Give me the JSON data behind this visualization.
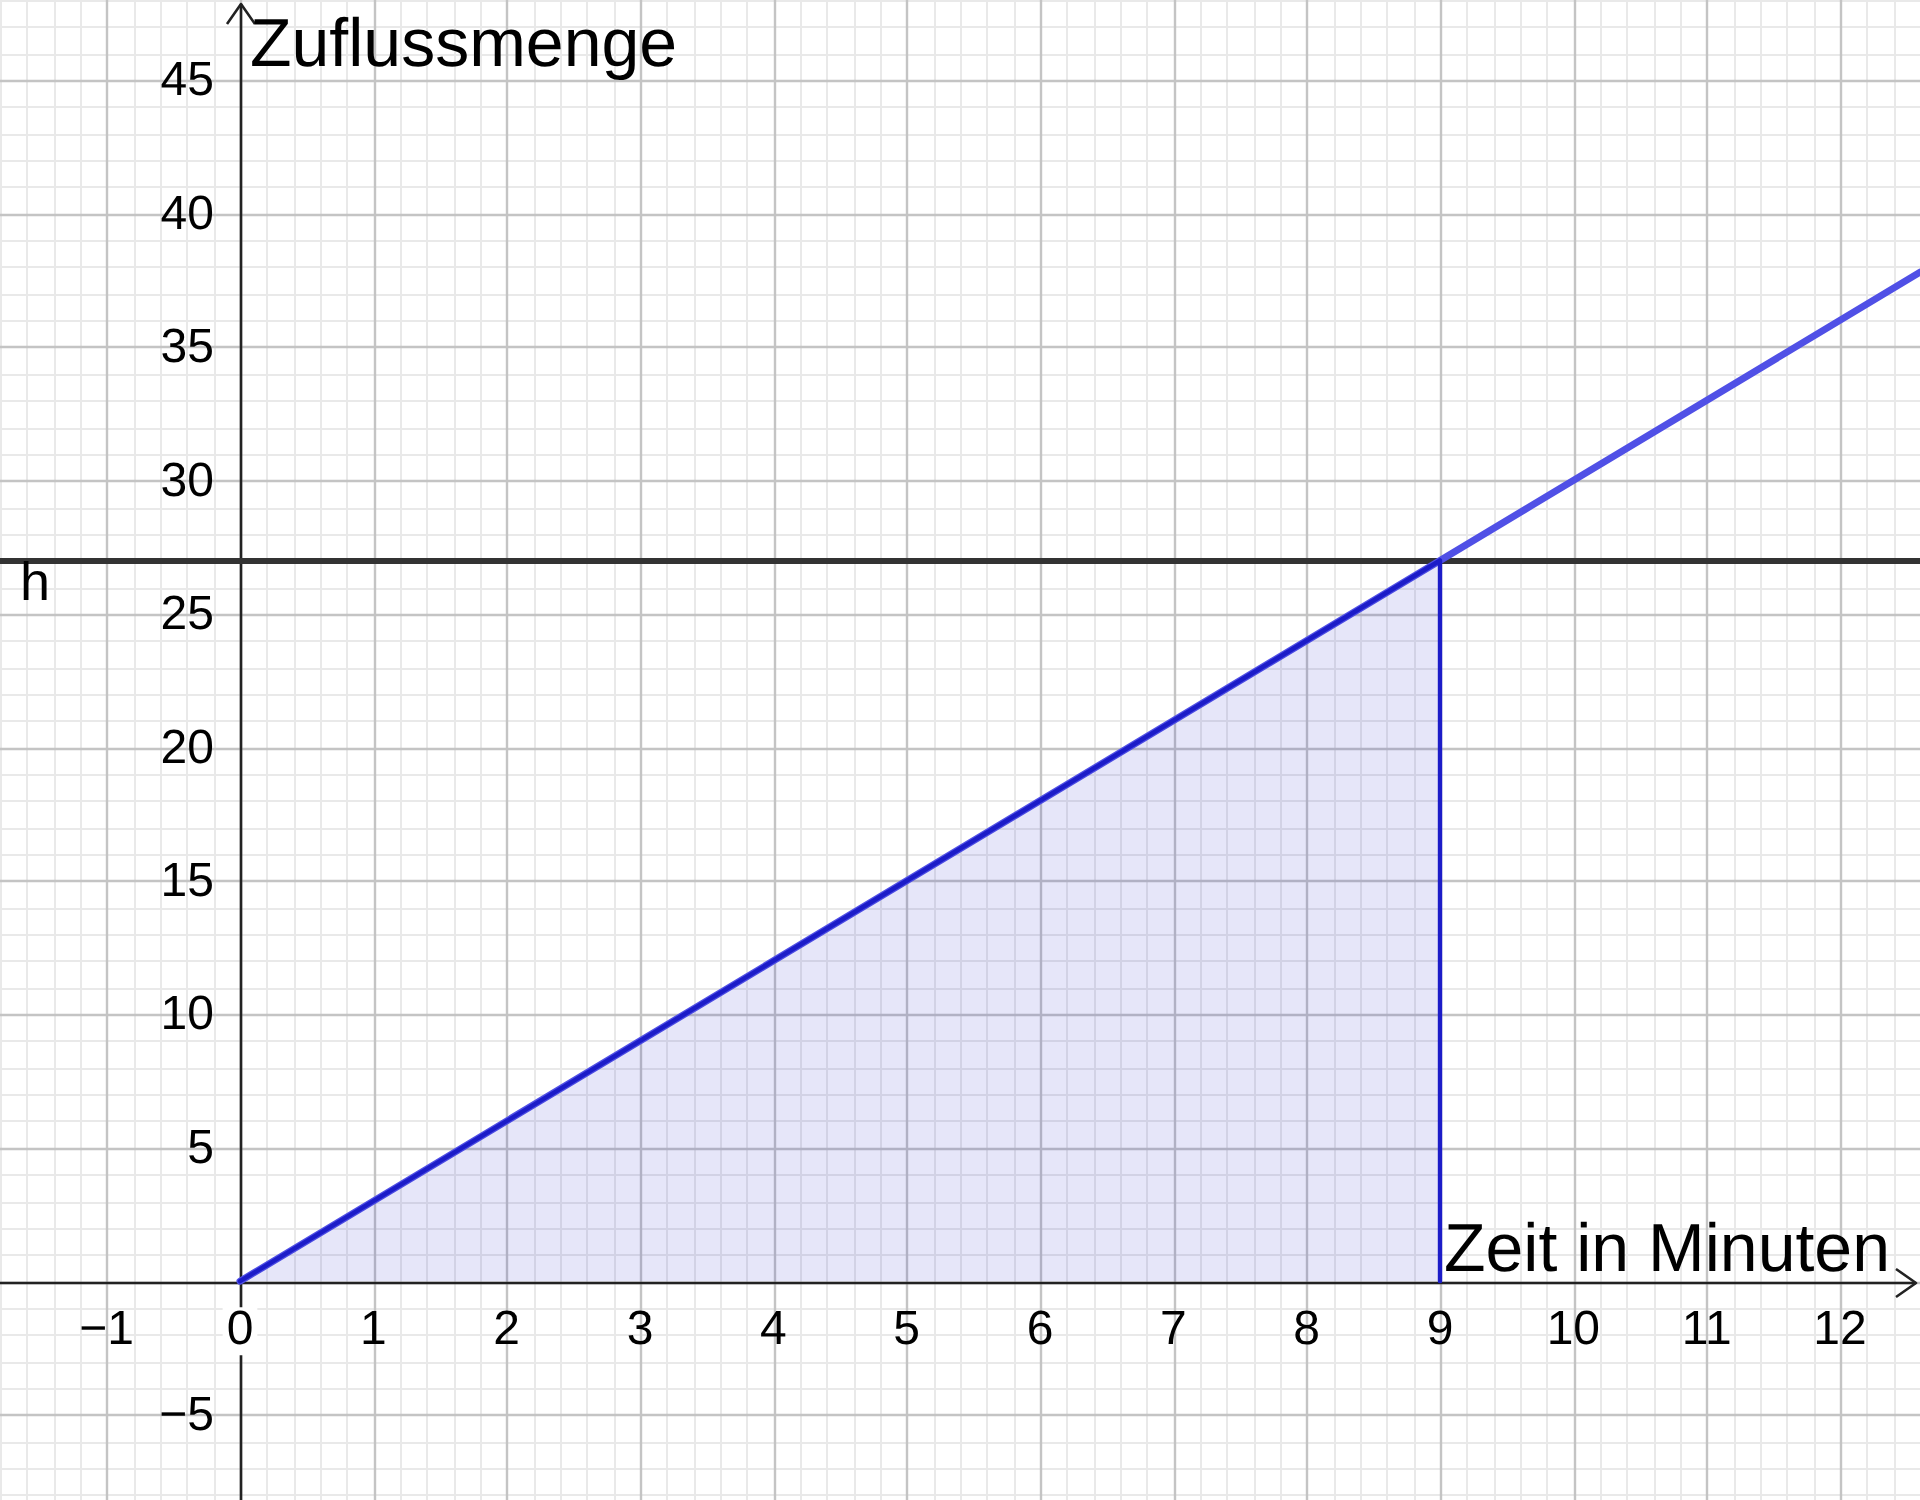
{
  "chart_data": {
    "type": "line",
    "xlabel": "Zeit in Minuten",
    "ylabel": "Zuflussmenge",
    "series": [
      {
        "type": "area",
        "color": "#1c1cc8",
        "x": [
          0,
          9,
          9
        ],
        "values": [
          0,
          27,
          0
        ]
      },
      {
        "type": "line",
        "color": "#5050e6",
        "x": [
          0,
          12.6
        ],
        "values": [
          0,
          37.8
        ]
      }
    ],
    "xlim": [
      -1.8,
      12.6
    ],
    "ylim": [
      -8.2,
      48
    ],
    "xticks": [
      {
        "value": -1,
        "label": "−1"
      },
      0,
      1,
      2,
      3,
      4,
      5,
      6,
      7,
      8,
      9,
      10,
      11,
      12
    ],
    "yticks": [
      {
        "value": -5,
        "label": "−5"
      },
      {
        "value": 0,
        "label": null
      },
      5,
      10,
      15,
      20,
      25,
      30,
      35,
      40,
      45
    ],
    "ref_lines": [
      {
        "axis": "y",
        "value": 27,
        "label": "h",
        "color": "#333333"
      }
    ],
    "grid": true,
    "legend": false,
    "marker": "none"
  }
}
